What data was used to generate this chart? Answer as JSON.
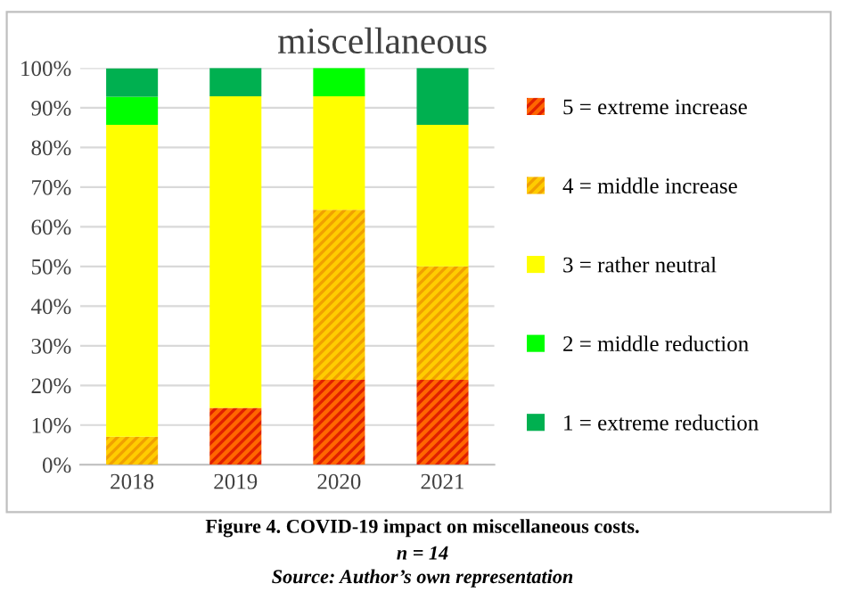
{
  "chart_data": {
    "type": "bar",
    "title": "miscellaneous",
    "stacked": true,
    "categories": [
      "2018",
      "2019",
      "2020",
      "2021"
    ],
    "series": [
      {
        "name": "5 = extreme increase",
        "color": "#ff6600",
        "values": [
          0,
          14.3,
          21.4,
          21.4
        ]
      },
      {
        "name": "4 = middle increase",
        "color": "#ffcc00",
        "values": [
          7.1,
          0,
          42.9,
          28.6
        ]
      },
      {
        "name": "3 = rather neutral",
        "color": "#ffff00",
        "values": [
          78.6,
          78.6,
          28.6,
          35.7
        ]
      },
      {
        "name": "2 = middle reduction",
        "color": "#00ff00",
        "values": [
          7.1,
          0,
          7.1,
          0
        ]
      },
      {
        "name": "1 = extreme reduction",
        "color": "#00b050",
        "values": [
          7.1,
          7.1,
          0,
          14.3
        ]
      }
    ],
    "ylim": [
      0,
      100
    ],
    "yticks": [
      {
        "value": 0,
        "label": "0%"
      },
      {
        "value": 10,
        "label": "10%"
      },
      {
        "value": 20,
        "label": "20%"
      },
      {
        "value": 30,
        "label": "30%"
      },
      {
        "value": 40,
        "label": "40%"
      },
      {
        "value": 50,
        "label": "50%"
      },
      {
        "value": 60,
        "label": "60%"
      },
      {
        "value": 70,
        "label": "70%"
      },
      {
        "value": 80,
        "label": "80%"
      },
      {
        "value": 90,
        "label": "90%"
      },
      {
        "value": 100,
        "label": "100%"
      }
    ],
    "grid": "y",
    "legend": "right",
    "annotations": [
      "Figure 4. COVID-19 impact on miscellaneous costs.",
      "n = 14",
      "Source: Author’s own representation"
    ]
  }
}
